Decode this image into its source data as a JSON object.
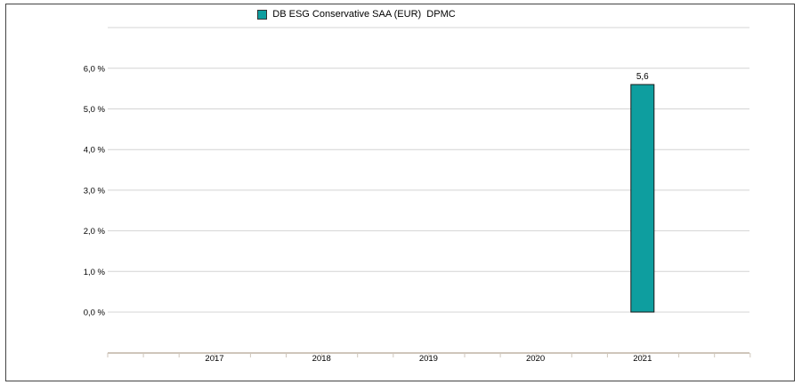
{
  "chart_data": {
    "type": "bar",
    "series": [
      {
        "name": "DB ESG Conservative SAA (EUR)  DPMC",
        "color": "#0e9e9f",
        "values": [
          null,
          null,
          null,
          null,
          5.6
        ]
      }
    ],
    "categories": [
      "2017",
      "2018",
      "2019",
      "2020",
      "2021"
    ],
    "data_labels": [
      "",
      "",
      "",
      "",
      "5,6"
    ],
    "y_ticks": [
      0,
      1,
      2,
      3,
      4,
      5,
      6
    ],
    "y_tick_labels": [
      "0,0 %",
      "1,0 %",
      "2,0 %",
      "3,0 %",
      "4,0 %",
      "5,0 %",
      "6,0 %"
    ],
    "ylim": [
      0,
      7
    ],
    "legend_position": "top-center",
    "grid": true
  }
}
